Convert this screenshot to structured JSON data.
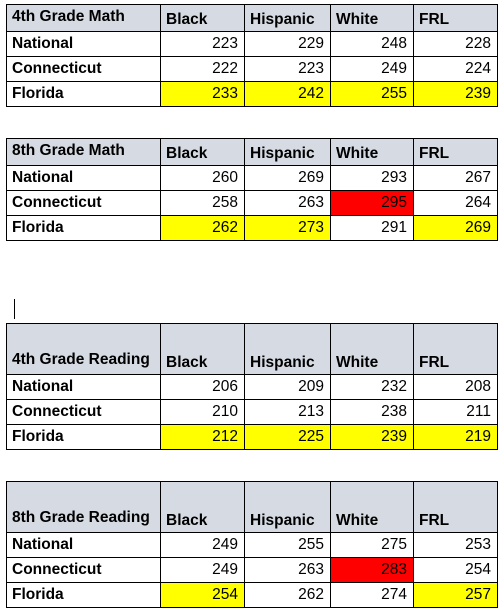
{
  "tables": [
    {
      "title": "4th Grade Math",
      "columns": [
        "Black",
        "Hispanic",
        "White",
        "FRL"
      ],
      "rows": [
        {
          "label": "National",
          "values": [
            "223",
            "229",
            "248",
            "228"
          ],
          "highlight": [
            "",
            "",
            "",
            ""
          ]
        },
        {
          "label": "Connecticut",
          "values": [
            "222",
            "223",
            "249",
            "224"
          ],
          "highlight": [
            "",
            "",
            "",
            ""
          ]
        },
        {
          "label": "Florida",
          "values": [
            "233",
            "242",
            "255",
            "239"
          ],
          "highlight": [
            "#ffff00",
            "#ffff00",
            "#ffff00",
            "#ffff00"
          ]
        }
      ]
    },
    {
      "title": "8th Grade Math",
      "columns": [
        "Black",
        "Hispanic",
        "White",
        "FRL"
      ],
      "rows": [
        {
          "label": "National",
          "values": [
            "260",
            "269",
            "293",
            "267"
          ],
          "highlight": [
            "",
            "",
            "",
            ""
          ]
        },
        {
          "label": "Connecticut",
          "values": [
            "258",
            "263",
            "295",
            "264"
          ],
          "highlight": [
            "",
            "",
            "#ff0000",
            ""
          ]
        },
        {
          "label": "Florida",
          "values": [
            "262",
            "273",
            "291",
            "269"
          ],
          "highlight": [
            "#ffff00",
            "#ffff00",
            "",
            "#ffff00"
          ]
        }
      ]
    },
    {
      "title": "4th Grade Reading",
      "columns": [
        "Black",
        "Hispanic",
        "White",
        "FRL"
      ],
      "rows": [
        {
          "label": "National",
          "values": [
            "206",
            "209",
            "232",
            "208"
          ],
          "highlight": [
            "",
            "",
            "",
            ""
          ]
        },
        {
          "label": "Connecticut",
          "values": [
            "210",
            "213",
            "238",
            "211"
          ],
          "highlight": [
            "",
            "",
            "",
            ""
          ]
        },
        {
          "label": "Florida",
          "values": [
            "212",
            "225",
            "239",
            "219"
          ],
          "highlight": [
            "#ffff00",
            "#ffff00",
            "#ffff00",
            "#ffff00"
          ]
        }
      ]
    },
    {
      "title": "8th Grade Reading",
      "columns": [
        "Black",
        "Hispanic",
        "White",
        "FRL"
      ],
      "rows": [
        {
          "label": "National",
          "values": [
            "249",
            "255",
            "275",
            "253"
          ],
          "highlight": [
            "",
            "",
            "",
            ""
          ]
        },
        {
          "label": "Connecticut",
          "values": [
            "249",
            "263",
            "283",
            "254"
          ],
          "highlight": [
            "",
            "",
            "#ff0000",
            ""
          ]
        },
        {
          "label": "Florida",
          "values": [
            "254",
            "262",
            "274",
            "257"
          ],
          "highlight": [
            "#ffff00",
            "",
            "",
            "#ffff00"
          ]
        }
      ]
    }
  ],
  "colors": {
    "header_bg": "#d6dbe3",
    "highlight_yellow": "#ffff00",
    "highlight_red": "#ff0000"
  }
}
